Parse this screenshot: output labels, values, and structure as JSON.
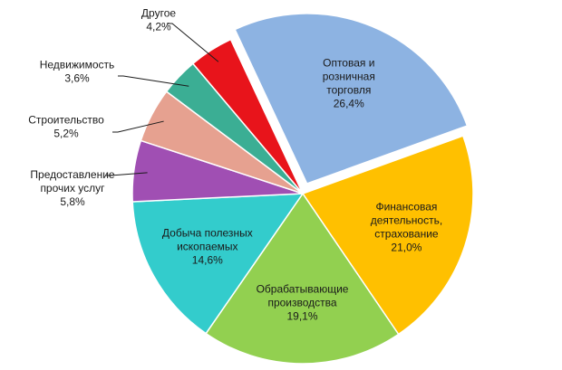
{
  "chart_data": {
    "type": "pie",
    "title": "",
    "slices": [
      {
        "name": "Оптовая и розничная торговля",
        "lines": [
          "Оптовая и",
          "розничная",
          "торговля"
        ],
        "value_label": "26,4%",
        "value": 26.4,
        "color": "#8DB3E2",
        "exploded": true
      },
      {
        "name": "Финансовая деятельность, страхование",
        "lines": [
          "Финансовая",
          "деятельность,",
          "страхование"
        ],
        "value_label": "21,0%",
        "value": 21.0,
        "color": "#FFC000"
      },
      {
        "name": "Обрабатывающие производства",
        "lines": [
          "Обрабатывающие",
          "производства"
        ],
        "value_label": "19,1%",
        "value": 19.1,
        "color": "#92D050"
      },
      {
        "name": "Добыча полезных ископаемых",
        "lines": [
          "Добыча полезных",
          "ископаемых"
        ],
        "value_label": "14,6%",
        "value": 14.6,
        "color": "#33CCCC"
      },
      {
        "name": "Предоставление прочих услуг",
        "lines": [
          "Предоставление",
          "прочих услуг"
        ],
        "value_label": "5,8%",
        "value": 5.8,
        "color": "#A04FB3"
      },
      {
        "name": "Строительство",
        "lines": [
          "Строительство"
        ],
        "value_label": "5,2%",
        "value": 5.2,
        "color": "#E6A190"
      },
      {
        "name": "Недвижимость",
        "lines": [
          "Недвижимость"
        ],
        "value_label": "3,6%",
        "value": 3.6,
        "color": "#3BAE94"
      },
      {
        "name": "Другое",
        "lines": [
          "Другое"
        ],
        "value_label": "4,2%",
        "value": 4.2,
        "color": "#E8141B"
      }
    ]
  }
}
